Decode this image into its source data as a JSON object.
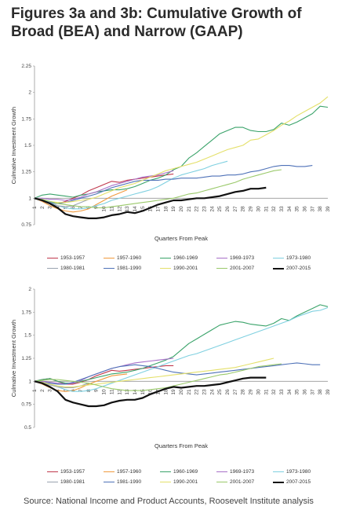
{
  "title": "Figures 3a and 3b: Cumulative Growth of Broad (BEA) and Narrow (GAAP)",
  "source": "Source: National Income and Product Accounts, Roosevelt Institute analysis",
  "colors": {
    "1953-1957": "#c0394d",
    "1957-1960": "#f09a3e",
    "1960-1969": "#3aa36a",
    "1969-1973": "#a870c8",
    "1973-1980": "#7fd0e0",
    "1980-1981": "#9aa3b0",
    "1981-1990": "#4f72b8",
    "1990-2001": "#e4e06a",
    "2001-2007": "#9ac96a",
    "2007-2015": "#111111"
  },
  "chart_data": [
    {
      "type": "line",
      "title": "",
      "xlabel": "Quarters From Peak",
      "ylabel": "Culmative Investment Growth",
      "ylim": [
        0.75,
        2.25
      ],
      "yticks": [
        "0.75",
        "1",
        "1.25",
        "1.5",
        "1.75",
        "2",
        "2.25"
      ],
      "xlim": [
        1,
        39
      ],
      "grid": false,
      "legend": "bottom",
      "series": [
        {
          "name": "1953-1957",
          "values": [
            1,
            0.98,
            0.96,
            0.95,
            0.97,
            1,
            1.03,
            1.07,
            1.1,
            1.13,
            1.16,
            1.15,
            1.17,
            1.18,
            1.19,
            1.2,
            1.21,
            1.22,
            1.23
          ]
        },
        {
          "name": "1957-1960",
          "values": [
            1,
            0.97,
            0.93,
            0.9,
            0.88,
            0.87,
            0.88,
            0.9,
            0.94,
            0.98,
            1.02,
            1.05,
            1.08
          ]
        },
        {
          "name": "1960-1969",
          "values": [
            1,
            1.03,
            1.04,
            1.03,
            1.02,
            1.01,
            1.03,
            1.04,
            1.06,
            1.07,
            1.08,
            1.08,
            1.09,
            1.11,
            1.14,
            1.17,
            1.19,
            1.22,
            1.27,
            1.3,
            1.38,
            1.43,
            1.49,
            1.55,
            1.61,
            1.64,
            1.67,
            1.67,
            1.64,
            1.63,
            1.63,
            1.65,
            1.71,
            1.69,
            1.72,
            1.76,
            1.8,
            1.87,
            1.86
          ]
        },
        {
          "name": "1969-1973",
          "values": [
            1,
            1,
            0.99,
            0.99,
            0.98,
            0.99,
            1.01,
            1.04,
            1.06,
            1.09,
            1.12,
            1.14,
            1.16,
            1.18,
            1.2,
            1.21,
            1.22,
            1.24,
            1.26
          ]
        },
        {
          "name": "1973-1980",
          "values": [
            1,
            0.99,
            0.96,
            0.93,
            0.91,
            0.9,
            0.9,
            0.91,
            0.93,
            0.95,
            0.98,
            1.0,
            1.02,
            1.04,
            1.06,
            1.08,
            1.11,
            1.15,
            1.19,
            1.22,
            1.24,
            1.26,
            1.28,
            1.31,
            1.33,
            1.35
          ]
        },
        {
          "name": "1980-1981",
          "values": [
            1,
            0.98,
            0.95,
            0.93,
            0.92,
            0.93,
            0.96,
            0.99
          ]
        },
        {
          "name": "1981-1990",
          "values": [
            1,
            0.98,
            0.96,
            0.95,
            0.96,
            0.98,
            1.0,
            1.02,
            1.04,
            1.07,
            1.1,
            1.12,
            1.14,
            1.16,
            1.17,
            1.17,
            1.17,
            1.18,
            1.18,
            1.19,
            1.19,
            1.19,
            1.2,
            1.21,
            1.21,
            1.22,
            1.22,
            1.23,
            1.25,
            1.26,
            1.28,
            1.3,
            1.31,
            1.31,
            1.3,
            1.3,
            1.31
          ]
        },
        {
          "name": "1990-2001",
          "values": [
            1,
            0.99,
            0.97,
            0.96,
            0.96,
            0.97,
            0.98,
            0.99,
            1.01,
            1.04,
            1.07,
            1.1,
            1.12,
            1.14,
            1.17,
            1.2,
            1.23,
            1.26,
            1.28,
            1.3,
            1.32,
            1.34,
            1.37,
            1.4,
            1.43,
            1.46,
            1.48,
            1.5,
            1.55,
            1.56,
            1.6,
            1.64,
            1.69,
            1.73,
            1.78,
            1.82,
            1.86,
            1.9,
            1.96
          ]
        },
        {
          "name": "2001-2007",
          "values": [
            1,
            0.99,
            0.97,
            0.95,
            0.94,
            0.93,
            0.92,
            0.92,
            0.91,
            0.91,
            0.92,
            0.93,
            0.94,
            0.95,
            0.96,
            0.97,
            0.98,
            0.99,
            1.0,
            1.02,
            1.04,
            1.05,
            1.07,
            1.09,
            1.11,
            1.13,
            1.15,
            1.18,
            1.2,
            1.22,
            1.24,
            1.26,
            1.27
          ]
        },
        {
          "name": "2007-2015",
          "values": [
            1,
            0.98,
            0.95,
            0.91,
            0.85,
            0.83,
            0.82,
            0.81,
            0.81,
            0.82,
            0.84,
            0.85,
            0.87,
            0.86,
            0.88,
            0.91,
            0.94,
            0.96,
            0.98,
            0.98,
            0.99,
            1.0,
            1.0,
            1.01,
            1.02,
            1.04,
            1.06,
            1.07,
            1.09,
            1.09,
            1.1
          ]
        }
      ]
    },
    {
      "type": "line",
      "title": "",
      "xlabel": "Quarters From Peak",
      "ylabel": "Culmative Investment Growth",
      "ylim": [
        0.5,
        2
      ],
      "yticks": [
        "0.5",
        "0.75",
        "1",
        "1.25",
        "1.5",
        "1.75",
        "2"
      ],
      "xlim": [
        1,
        39
      ],
      "grid": false,
      "legend": "bottom",
      "series": [
        {
          "name": "1953-1957",
          "values": [
            1,
            1.02,
            1.03,
            1.0,
            0.97,
            0.97,
            0.99,
            1.02,
            1.06,
            1.09,
            1.12,
            1.11,
            1.12,
            1.13,
            1.14,
            1.15,
            1.16,
            1.17,
            1.17
          ]
        },
        {
          "name": "1957-1960",
          "values": [
            1,
            0.97,
            0.93,
            0.9,
            0.89,
            0.9,
            0.93,
            0.97,
            1.0,
            1.03,
            1.06,
            1.07,
            1.08
          ]
        },
        {
          "name": "1960-1969",
          "values": [
            1,
            1.02,
            1.03,
            1.0,
            0.98,
            0.98,
            1.0,
            1.02,
            1.04,
            1.06,
            1.08,
            1.09,
            1.1,
            1.12,
            1.14,
            1.17,
            1.2,
            1.23,
            1.27,
            1.34,
            1.41,
            1.46,
            1.51,
            1.56,
            1.61,
            1.63,
            1.65,
            1.64,
            1.62,
            1.61,
            1.6,
            1.63,
            1.68,
            1.66,
            1.71,
            1.75,
            1.79,
            1.83,
            1.81
          ]
        },
        {
          "name": "1969-1973",
          "values": [
            1,
            1.0,
            0.99,
            0.98,
            0.97,
            0.98,
            1.01,
            1.05,
            1.08,
            1.11,
            1.14,
            1.16,
            1.18,
            1.2,
            1.21,
            1.22,
            1.23,
            1.24,
            1.25
          ]
        },
        {
          "name": "1973-1980",
          "values": [
            1,
            0.99,
            0.97,
            0.94,
            0.91,
            0.89,
            0.89,
            0.9,
            0.92,
            0.95,
            0.98,
            1.01,
            1.04,
            1.07,
            1.1,
            1.13,
            1.16,
            1.19,
            1.22,
            1.25,
            1.28,
            1.3,
            1.33,
            1.36,
            1.39,
            1.42,
            1.45,
            1.48,
            1.51,
            1.54,
            1.57,
            1.6,
            1.63,
            1.66,
            1.7,
            1.73,
            1.76,
            1.77,
            1.8
          ]
        },
        {
          "name": "1980-1981",
          "values": [
            1,
            0.98,
            0.96,
            0.94,
            0.93,
            0.93,
            0.95,
            0.98
          ]
        },
        {
          "name": "1981-1990",
          "values": [
            1,
            0.99,
            0.98,
            0.97,
            0.97,
            0.99,
            1.02,
            1.05,
            1.08,
            1.11,
            1.14,
            1.16,
            1.17,
            1.18,
            1.17,
            1.16,
            1.14,
            1.12,
            1.1,
            1.09,
            1.08,
            1.07,
            1.08,
            1.09,
            1.1,
            1.11,
            1.12,
            1.13,
            1.14,
            1.15,
            1.16,
            1.17,
            1.18,
            1.19,
            1.2,
            1.19,
            1.18,
            1.18
          ]
        },
        {
          "name": "1990-2001",
          "values": [
            1,
            0.99,
            0.97,
            0.95,
            0.94,
            0.94,
            0.95,
            0.96,
            0.97,
            0.98,
            0.99,
            1.0,
            1.01,
            1.02,
            1.03,
            1.04,
            1.05,
            1.06,
            1.07,
            1.08,
            1.09,
            1.1,
            1.11,
            1.12,
            1.13,
            1.14,
            1.15,
            1.17,
            1.19,
            1.21,
            1.23,
            1.25
          ]
        },
        {
          "name": "2001-2007",
          "values": [
            1,
            1.01,
            1.02,
            1.02,
            1.01,
            1.0,
            0.99,
            0.98,
            0.96,
            0.94,
            0.92,
            0.91,
            0.9,
            0.9,
            0.9,
            0.91,
            0.92,
            0.93,
            0.95,
            0.97,
            0.99,
            1.01,
            1.03,
            1.05,
            1.07,
            1.08,
            1.1,
            1.12,
            1.14,
            1.16,
            1.17,
            1.18,
            1.19
          ]
        },
        {
          "name": "2007-2015",
          "values": [
            1,
            0.98,
            0.94,
            0.89,
            0.8,
            0.77,
            0.75,
            0.73,
            0.73,
            0.74,
            0.77,
            0.79,
            0.8,
            0.8,
            0.82,
            0.86,
            0.89,
            0.92,
            0.94,
            0.93,
            0.94,
            0.95,
            0.95,
            0.96,
            0.97,
            0.99,
            1.01,
            1.03,
            1.04,
            1.04,
            1.04
          ]
        }
      ]
    }
  ],
  "legend_rows": [
    [
      "1953-1957",
      "1957-1960",
      "1960-1969",
      "1969-1973",
      "1973-1980"
    ],
    [
      "1980-1981",
      "1981-1990",
      "1990-2001",
      "2001-2007",
      "2007-2015"
    ]
  ]
}
